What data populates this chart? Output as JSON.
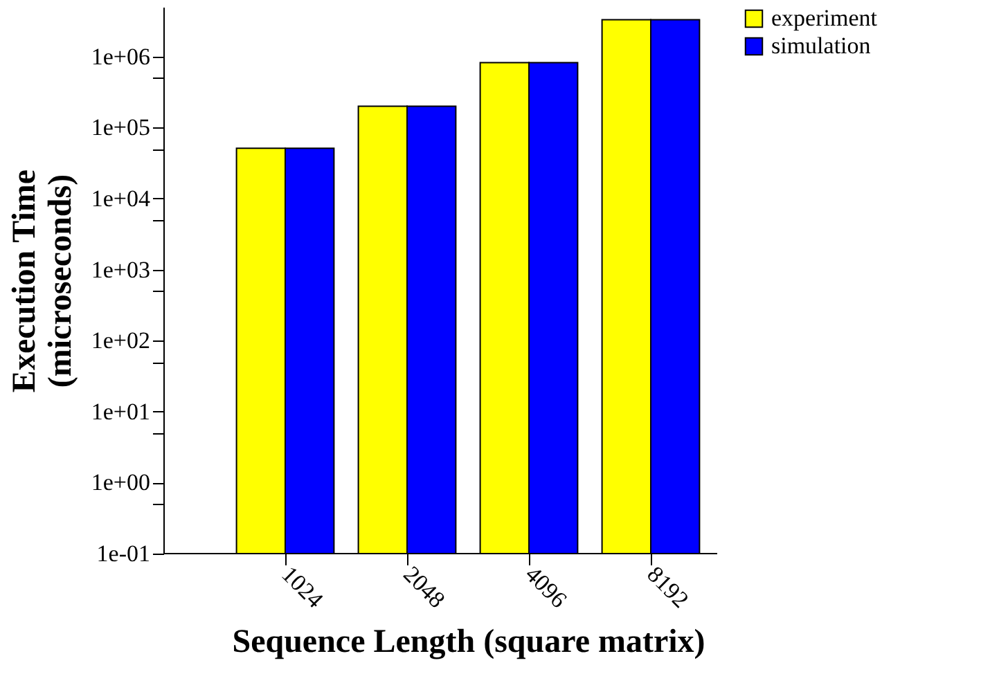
{
  "chart_data": {
    "type": "bar",
    "xlabel": "Sequence Length (square matrix)",
    "ylabel": "Execution Time\n(microseconds)",
    "categories": [
      "1024",
      "2048",
      "4096",
      "8192"
    ],
    "series": [
      {
        "name": "experiment",
        "color": "#ffff00",
        "values": [
          51000,
          200000,
          820000,
          3300000
        ]
      },
      {
        "name": "simulation",
        "color": "#0000ff",
        "values": [
          51000,
          200000,
          820000,
          3300000
        ]
      }
    ],
    "log": "y",
    "ylim": [
      0.1,
      5000000
    ],
    "yticks": [
      {
        "value": 0.1,
        "label": "1e-01"
      },
      {
        "value": 0.5,
        "label": null
      },
      {
        "value": 1,
        "label": "1e+00"
      },
      {
        "value": 5,
        "label": null
      },
      {
        "value": 10,
        "label": "1e+01"
      },
      {
        "value": 50,
        "label": null
      },
      {
        "value": 100,
        "label": "1e+02"
      },
      {
        "value": 500,
        "label": null
      },
      {
        "value": 1000,
        "label": "1e+03"
      },
      {
        "value": 5000,
        "label": null
      },
      {
        "value": 10000,
        "label": "1e+04"
      },
      {
        "value": 50000,
        "label": null
      },
      {
        "value": 100000,
        "label": "1e+05"
      },
      {
        "value": 500000,
        "label": null
      },
      {
        "value": 1000000,
        "label": "1e+06"
      }
    ],
    "grid": false,
    "legend": "right"
  }
}
